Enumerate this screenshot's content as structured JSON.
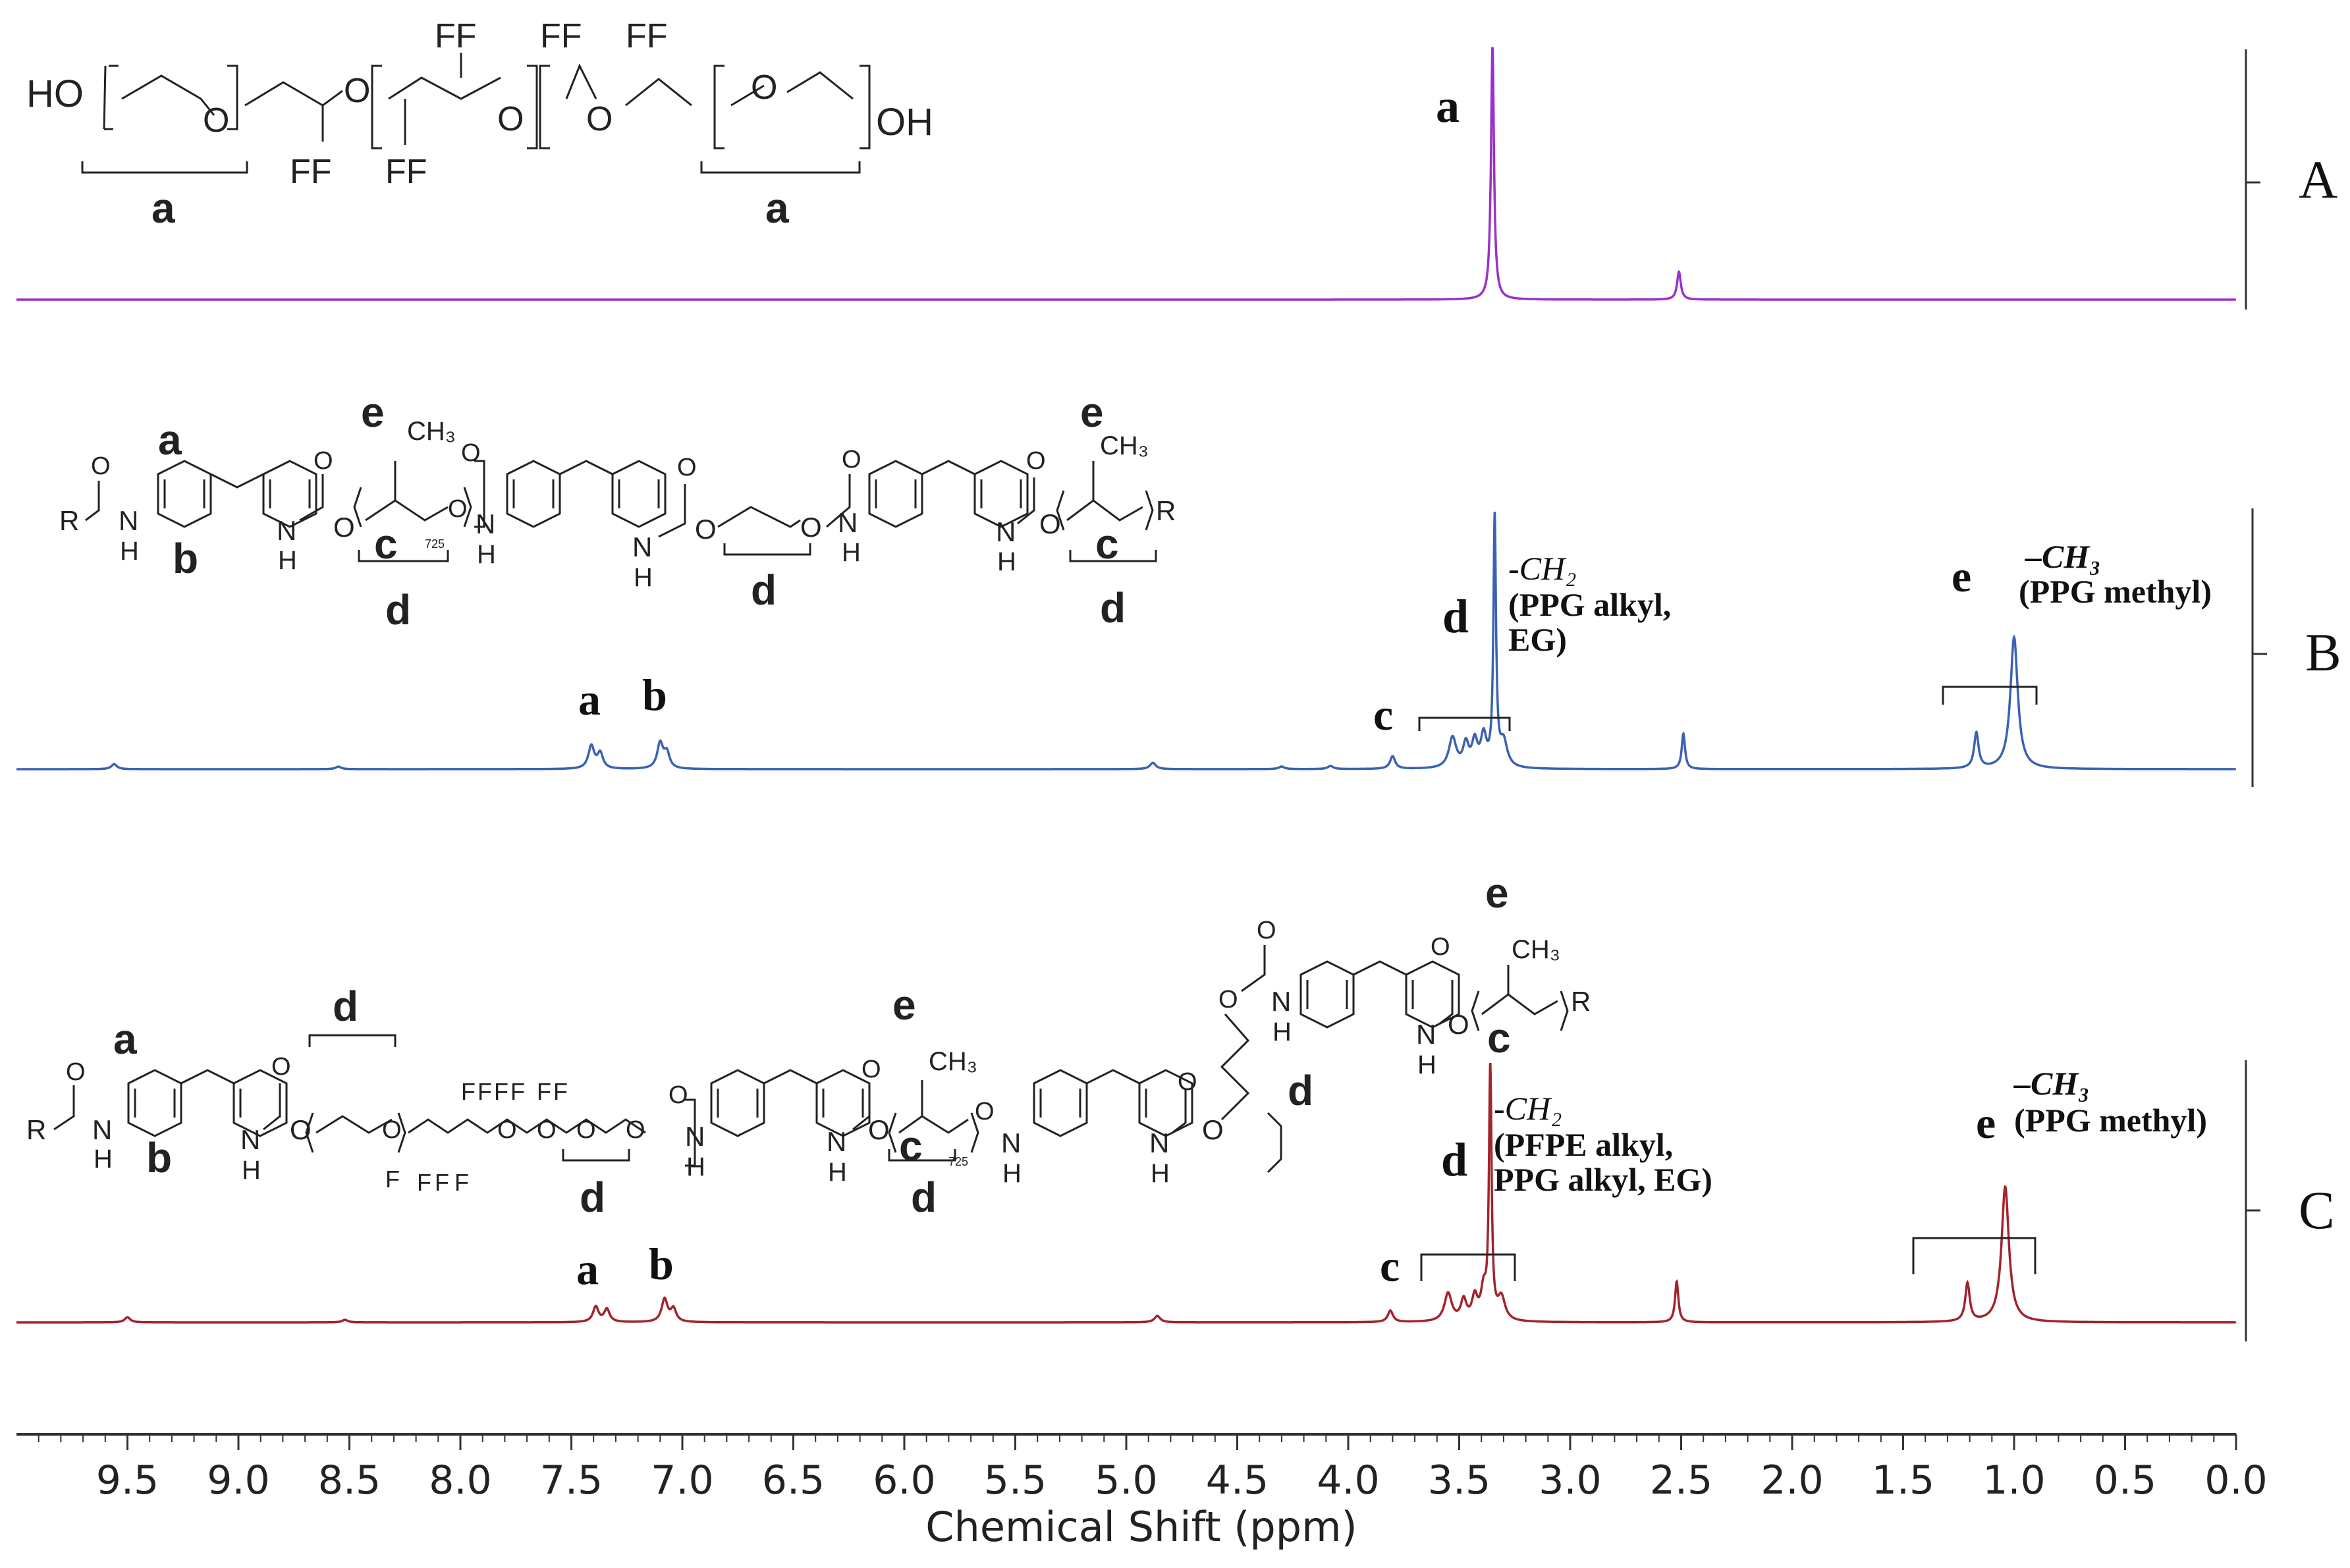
{
  "chart_data": {
    "type": "line",
    "xlabel": "Chemical Shift (ppm)",
    "xlim": [
      10.0,
      0.0
    ],
    "x_reversed": true,
    "x_ticks": [
      "9.5",
      "9.0",
      "8.5",
      "8.0",
      "7.5",
      "7.0",
      "6.5",
      "6.0",
      "5.5",
      "5.0",
      "4.5",
      "4.0",
      "3.5",
      "3.0",
      "2.5",
      "2.0",
      "1.5",
      "1.0",
      "0.5",
      "0.0"
    ],
    "x_tick_values": [
      9.5,
      9.0,
      8.5,
      8.0,
      7.5,
      7.0,
      6.5,
      6.0,
      5.5,
      5.0,
      4.5,
      4.0,
      3.5,
      3.0,
      2.5,
      2.0,
      1.5,
      1.0,
      0.5,
      0.0
    ],
    "grid": false,
    "series": [
      {
        "name": "A",
        "color": "#9b30c8",
        "peaks": [
          {
            "shift": 3.35,
            "height": 1.0,
            "width": 0.008
          },
          {
            "shift": 2.51,
            "height": 0.11,
            "width": 0.01
          }
        ],
        "annotations": [
          {
            "text": "a",
            "shift": 3.48,
            "height": 0.78
          }
        ]
      },
      {
        "name": "B",
        "color": "#3a62b4",
        "peaks": [
          {
            "shift": 9.56,
            "height": 0.02,
            "width": 0.015
          },
          {
            "shift": 8.55,
            "height": 0.01,
            "width": 0.015
          },
          {
            "shift": 7.41,
            "height": 0.09,
            "width": 0.016
          },
          {
            "shift": 7.37,
            "height": 0.06,
            "width": 0.015
          },
          {
            "shift": 7.1,
            "height": 0.1,
            "width": 0.016
          },
          {
            "shift": 7.07,
            "height": 0.06,
            "width": 0.015
          },
          {
            "shift": 4.88,
            "height": 0.025,
            "width": 0.016
          },
          {
            "shift": 4.3,
            "height": 0.01,
            "width": 0.015
          },
          {
            "shift": 4.08,
            "height": 0.012,
            "width": 0.015
          },
          {
            "shift": 3.8,
            "height": 0.05,
            "width": 0.014
          },
          {
            "shift": 3.53,
            "height": 0.12,
            "width": 0.02
          },
          {
            "shift": 3.47,
            "height": 0.09,
            "width": 0.015
          },
          {
            "shift": 3.43,
            "height": 0.1,
            "width": 0.015
          },
          {
            "shift": 3.39,
            "height": 0.12,
            "width": 0.015
          },
          {
            "shift": 3.34,
            "height": 0.98,
            "width": 0.007
          },
          {
            "shift": 3.3,
            "height": 0.1,
            "width": 0.02
          },
          {
            "shift": 2.49,
            "height": 0.14,
            "width": 0.009
          },
          {
            "shift": 1.17,
            "height": 0.14,
            "width": 0.012
          },
          {
            "shift": 1.0,
            "height": 0.52,
            "width": 0.02
          }
        ],
        "annotations": [
          {
            "text": "a",
            "shift": 7.42
          },
          {
            "text": "b",
            "shift": 7.12
          },
          {
            "text": "c",
            "shift": 3.84
          },
          {
            "text": "d",
            "shift": 3.48
          },
          {
            "text": "e",
            "shift": 1.29
          },
          {
            "text": "-CH₂"
          },
          {
            "text": "(PPG alkyl,"
          },
          {
            "text": "EG)"
          },
          {
            "text": "–CH₃"
          },
          {
            "text": "(PPG methyl)"
          }
        ]
      },
      {
        "name": "C",
        "color": "#a2242c",
        "peaks": [
          {
            "shift": 9.5,
            "height": 0.02,
            "width": 0.015
          },
          {
            "shift": 8.52,
            "height": 0.01,
            "width": 0.015
          },
          {
            "shift": 7.39,
            "height": 0.06,
            "width": 0.015
          },
          {
            "shift": 7.34,
            "height": 0.05,
            "width": 0.015
          },
          {
            "shift": 7.08,
            "height": 0.09,
            "width": 0.016
          },
          {
            "shift": 7.04,
            "height": 0.05,
            "width": 0.015
          },
          {
            "shift": 4.86,
            "height": 0.025,
            "width": 0.016
          },
          {
            "shift": 3.81,
            "height": 0.045,
            "width": 0.014
          },
          {
            "shift": 3.55,
            "height": 0.11,
            "width": 0.02
          },
          {
            "shift": 3.48,
            "height": 0.08,
            "width": 0.015
          },
          {
            "shift": 3.43,
            "height": 0.09,
            "width": 0.015
          },
          {
            "shift": 3.39,
            "height": 0.11,
            "width": 0.015
          },
          {
            "shift": 3.36,
            "height": 0.98,
            "width": 0.007
          },
          {
            "shift": 3.31,
            "height": 0.09,
            "width": 0.02
          },
          {
            "shift": 2.52,
            "height": 0.16,
            "width": 0.009
          },
          {
            "shift": 1.21,
            "height": 0.15,
            "width": 0.012
          },
          {
            "shift": 1.04,
            "height": 0.53,
            "width": 0.02
          }
        ],
        "annotations": [
          {
            "text": "a",
            "shift": 7.38
          },
          {
            "text": "b",
            "shift": 7.08
          },
          {
            "text": "c",
            "shift": 3.82
          },
          {
            "text": "d",
            "shift": 3.45
          },
          {
            "text": "e",
            "shift": 1.22
          },
          {
            "text": "-CH₂"
          },
          {
            "text": "(PFPE alkyl,"
          },
          {
            "text": "PPG alkyl, EG)"
          },
          {
            "text": "–CH₃"
          },
          {
            "text": "(PPG methyl)"
          }
        ]
      }
    ]
  },
  "structures": {
    "A": {
      "HO": "HO",
      "OH": "OH",
      "O": "O",
      "FF": "FF",
      "brackets": [
        "a",
        "a"
      ]
    },
    "B": {
      "R": "R",
      "O": "O",
      "N": "N",
      "H": "H",
      "CH3": "CH₃",
      "n725": "725",
      "labels": [
        "a",
        "b",
        "c",
        "d",
        "e"
      ]
    },
    "C": {
      "R": "R",
      "O": "O",
      "N": "N",
      "H": "H",
      "F": "F",
      "CH3": "CH₃",
      "n725": "725",
      "labels": [
        "a",
        "b",
        "c",
        "d",
        "e"
      ]
    }
  }
}
